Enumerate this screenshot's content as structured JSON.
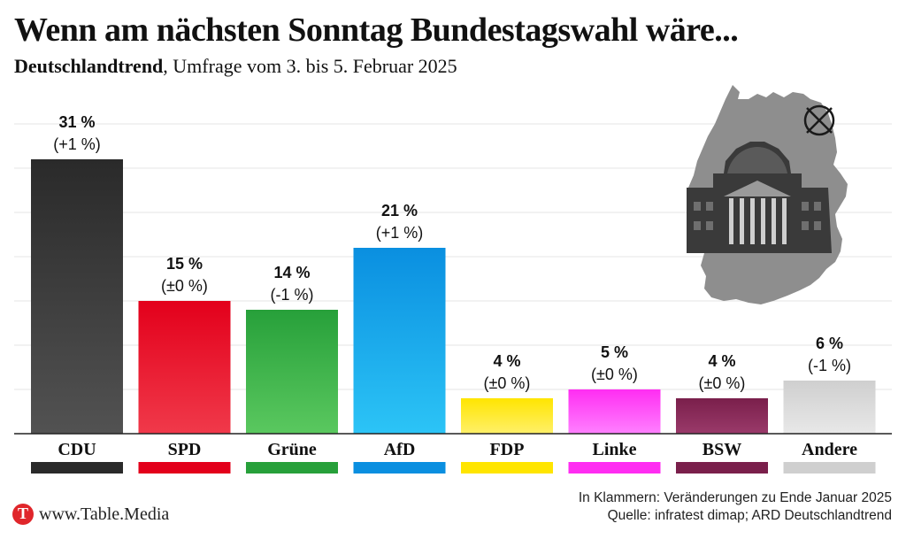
{
  "header": {
    "title": "Wenn am nächsten Sonntag Bundestagswahl wäre...",
    "subtitle_bold": "Deutschlandtrend",
    "subtitle_rest": ", Umfrage vom 3. bis 5. Februar 2025"
  },
  "footer": {
    "note_line1": "In Klammern: Veränderungen zu Ende Januar 2025",
    "note_line2": "Quelle: infratest dimap; ARD Deutschlandtrend",
    "brand": "www.Table.Media"
  },
  "chart_data": {
    "type": "bar",
    "categories": [
      "CDU",
      "SPD",
      "Grüne",
      "AfD",
      "FDP",
      "Linke",
      "BSW",
      "Andere"
    ],
    "values": [
      31,
      15,
      14,
      21,
      4,
      5,
      4,
      6
    ],
    "value_labels": [
      "31 %",
      "15 %",
      "14 %",
      "21 %",
      "4 %",
      "5 %",
      "4 %",
      "6 %"
    ],
    "change_labels": [
      "(+1 %)",
      "(±0 %)",
      "(-1 %)",
      "(+1 %)",
      "(±0 %)",
      "(±0 %)",
      "(±0 %)",
      "(-1 %)"
    ],
    "colors": [
      "#2a2a2a",
      "#e3001b",
      "#27a03a",
      "#0a8fe0",
      "#ffe500",
      "#ff2df2",
      "#7a1f4b",
      "#cfcfcf"
    ],
    "gradient_light": [
      "#525252",
      "#f0394a",
      "#5ac85f",
      "#2cc4f6",
      "#fff06a",
      "#ff80ff",
      "#9a3a6a",
      "#e8e8e8"
    ],
    "ylim": [
      0,
      35
    ],
    "grid": true,
    "legend": "none"
  }
}
